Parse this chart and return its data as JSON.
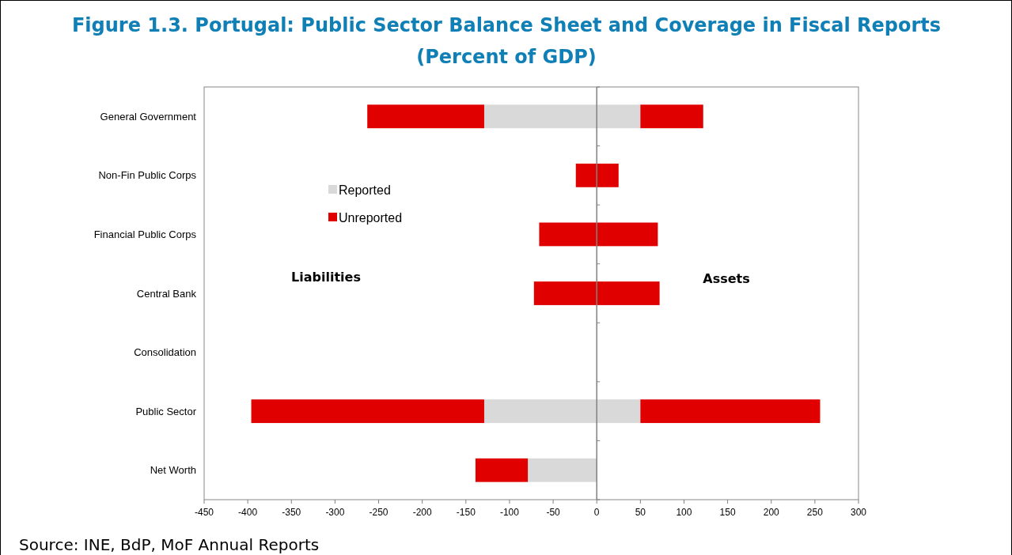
{
  "chart_data": {
    "type": "bar",
    "orientation": "horizontal",
    "stacked": true,
    "title": "Figure 1.3. Portugal: Public Sector Balance Sheet and Coverage in Fiscal Reports",
    "subtitle": "(Percent of GDP)",
    "categories": [
      "General Government",
      "Non-Fin Public Corps",
      "Financial Public Corps",
      "Central Bank",
      "Consolidation",
      "Public Sector",
      "Net Worth"
    ],
    "series": [
      {
        "name": "Reported",
        "color": "#d9d9d9",
        "values": [
          -129,
          null,
          null,
          null,
          null,
          -129,
          -79
        ]
      },
      {
        "name": "Unreported",
        "color": "#e00000",
        "values": [
          -134,
          -24,
          -66,
          -72,
          null,
          -267,
          -60
        ]
      },
      {
        "color": "#d9d9d9",
        "values": [
          50,
          null,
          null,
          null,
          null,
          50,
          null
        ]
      },
      {
        "color": "#e00000",
        "values": [
          72,
          25,
          70,
          72,
          null,
          206,
          null
        ]
      }
    ],
    "xlim": [
      -450,
      300
    ],
    "xticks": [
      -450,
      -400,
      -350,
      -300,
      -250,
      -200,
      -150,
      -100,
      -50,
      0,
      50,
      100,
      150,
      200,
      250,
      300
    ],
    "legend": "top left",
    "annotations": [
      "Liabilities",
      "Assets",
      "Source: INE, BdP, MoF Annual Reports"
    ]
  }
}
